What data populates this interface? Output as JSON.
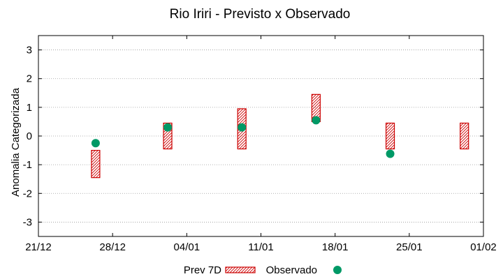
{
  "chart_data": {
    "type": "scatter",
    "title": "Rio Iriri - Previsto x Observado",
    "xlabel": "",
    "ylabel": "Anomalia Categorizada",
    "ylim": [
      -3.5,
      3.5
    ],
    "yticks": [
      -3,
      -2,
      -1,
      0,
      1,
      2,
      3
    ],
    "xlim": [
      -7,
      14
    ],
    "xticks": [
      {
        "pos": -7,
        "label": "21/12"
      },
      {
        "pos": -3.5,
        "label": "28/12"
      },
      {
        "pos": 0,
        "label": "04/01"
      },
      {
        "pos": 3.5,
        "label": "11/01"
      },
      {
        "pos": 7,
        "label": "18/01"
      },
      {
        "pos": 10.5,
        "label": "25/01"
      },
      {
        "pos": 14,
        "label": "01/02"
      }
    ],
    "grid": true,
    "legend_position": "bottom",
    "series": [
      {
        "name": "Prev 7D",
        "type": "range",
        "color": "#cc0000",
        "points": [
          {
            "x": -4.3,
            "low": -1.45,
            "high": -0.5
          },
          {
            "x": -0.9,
            "low": -0.45,
            "high": 0.45
          },
          {
            "x": 2.6,
            "low": -0.45,
            "high": 0.95
          },
          {
            "x": 6.1,
            "low": 0.5,
            "high": 1.45
          },
          {
            "x": 9.6,
            "low": -0.45,
            "high": 0.45
          },
          {
            "x": 13.1,
            "low": -0.45,
            "high": 0.45
          }
        ]
      },
      {
        "name": "Observado",
        "type": "point",
        "color": "#009966",
        "points": [
          {
            "x": -4.3,
            "y": -0.25
          },
          {
            "x": -0.9,
            "y": 0.3
          },
          {
            "x": 2.6,
            "y": 0.3
          },
          {
            "x": 6.1,
            "y": 0.55
          },
          {
            "x": 9.6,
            "y": -0.62
          }
        ]
      }
    ]
  }
}
